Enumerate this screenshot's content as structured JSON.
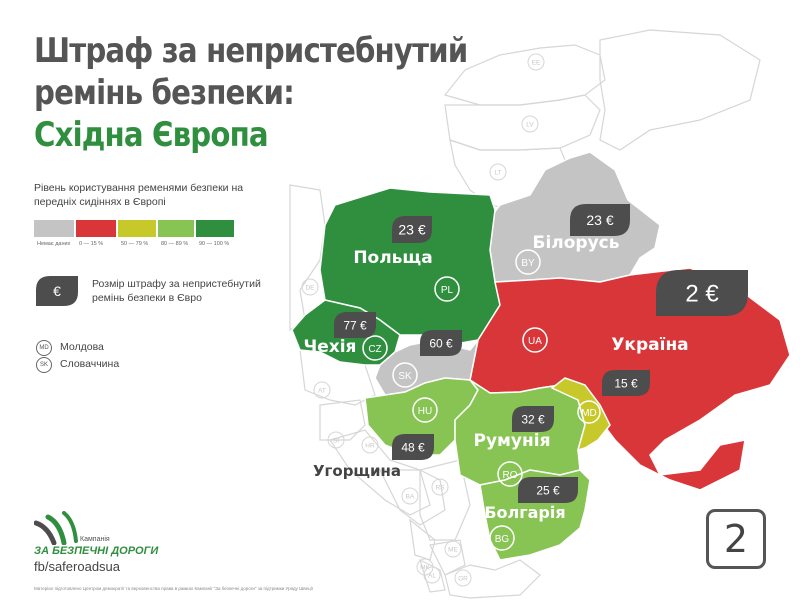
{
  "title": {
    "line1": "Штраф за непристебнутий",
    "line2": "ремінь безпеки:",
    "line3": "Східна Європа"
  },
  "legend": {
    "title": "Рівень користування ременями безпеки на передніх сидіннях в Європі",
    "bins": [
      {
        "label": "Немає даних",
        "color": "#c4c4c4"
      },
      {
        "label": "0 — 15 %",
        "color": "#d9363a"
      },
      {
        "label": "50 — 79 %",
        "color": "#c7c82a"
      },
      {
        "label": "80 — 89 %",
        "color": "#88c454"
      },
      {
        "label": "90 — 100 %",
        "color": "#2f8f3f"
      }
    ],
    "fine_symbol": "€",
    "fine_text": "Розмір штрафу за непристебнутий ремінь безпеки в Євро",
    "abbreviations": [
      {
        "code": "MD",
        "name": "Молдова"
      },
      {
        "code": "SK",
        "name": "Словаччина"
      }
    ]
  },
  "countries": [
    {
      "name": "Польща",
      "code": "PL",
      "fine": "23 €",
      "color": "#2f8f3f",
      "text_color": "#ffffff"
    },
    {
      "name": "Білорусь",
      "code": "BY",
      "fine": "23 €",
      "color": "#c4c4c4",
      "text_color": "#ffffff"
    },
    {
      "name": "Україна",
      "code": "UA",
      "fine": "2 €",
      "color": "#d9363a",
      "text_color": "#ffffff"
    },
    {
      "name": "Чехія",
      "code": "CZ",
      "fine": "77 €",
      "color": "#2f8f3f",
      "text_color": "#ffffff"
    },
    {
      "name": "",
      "code": "SK",
      "fine": "60 €",
      "color": "#c4c4c4",
      "text_color": "#ffffff"
    },
    {
      "name": "Угорщина",
      "code": "HU",
      "fine": "48 €",
      "color": "#88c454",
      "text_color": "#444444"
    },
    {
      "name": "Румунія",
      "code": "RO",
      "fine": "32 €",
      "color": "#88c454",
      "text_color": "#ffffff"
    },
    {
      "name": "",
      "code": "MD",
      "fine": "15 €",
      "color": "#c7c82a",
      "text_color": "#ffffff"
    },
    {
      "name": "Болгарія",
      "code": "BG",
      "fine": "25 €",
      "color": "#88c454",
      "text_color": "#ffffff"
    }
  ],
  "neighbor_codes": [
    "EE",
    "LV",
    "LT",
    "DE",
    "AT",
    "SI",
    "HR",
    "BA",
    "RS",
    "ME",
    "MK",
    "AL",
    "GR"
  ],
  "logo": {
    "small_text": "Кампанія",
    "name": "ЗА БЕЗПЕЧНІ ДОРОГИ",
    "fb": "fb/saferoadsua"
  },
  "footer": "Матеріал підготовлено Центром демократії та верховенства права в рамках Кампанії \"За безпечні дороги\" за підтримки Уряду Швеції",
  "page_number": "2",
  "colors": {
    "title": "#555555",
    "accent_green": "#2f8f3f",
    "tag": "#4d4d4d",
    "outline": "#d6d6d6"
  }
}
